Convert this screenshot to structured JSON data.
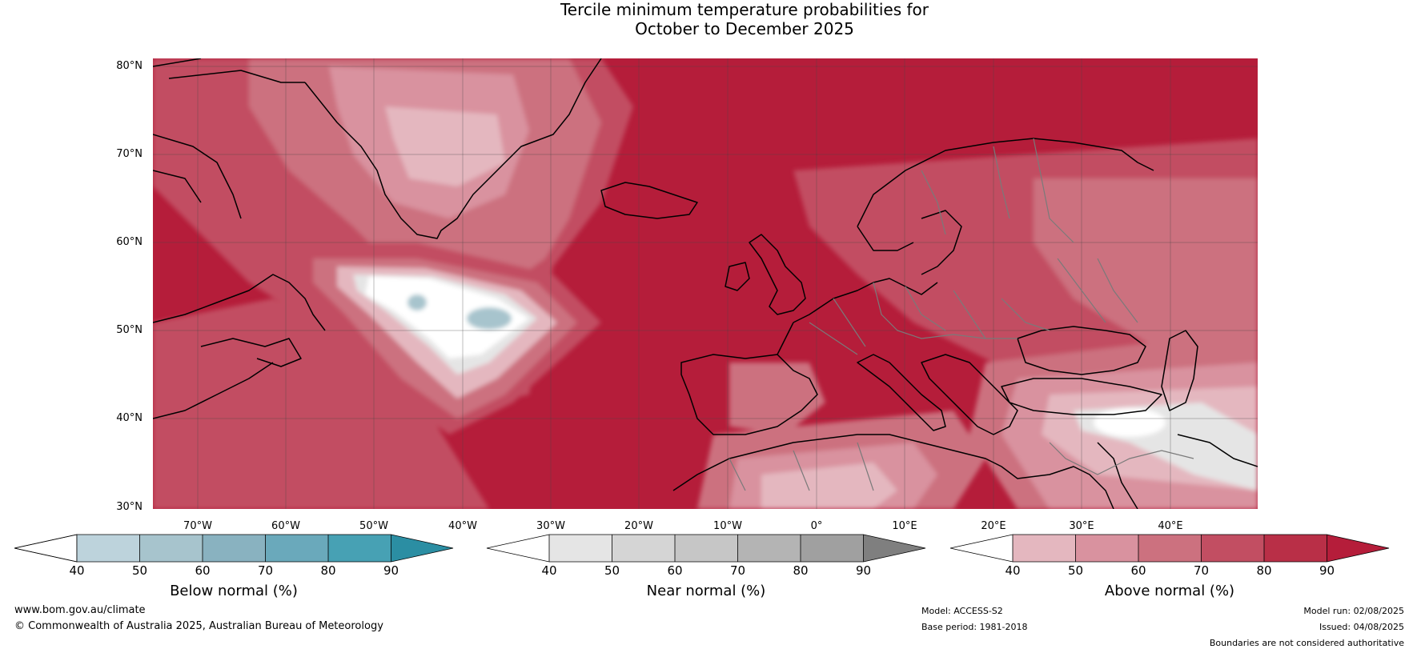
{
  "title": {
    "line1": "Tercile minimum temperature probabilities for",
    "line2": "October to December 2025"
  },
  "map": {
    "ocean_color": "#b51d3a",
    "lat_labels": [
      "80°N",
      "70°N",
      "60°N",
      "50°N",
      "40°N",
      "30°N"
    ],
    "lon_labels": [
      "70°W",
      "60°W",
      "50°W",
      "40°W",
      "30°W",
      "20°W",
      "10°W",
      "0°",
      "10°E",
      "20°E",
      "30°E",
      "40°E"
    ]
  },
  "legends": [
    {
      "title": "Below normal (%)",
      "ticks": [
        "40",
        "50",
        "60",
        "70",
        "80",
        "90"
      ],
      "colors": [
        "#ffffff",
        "#bdd3dc",
        "#a7c4cd",
        "#89b2c0",
        "#6aa9bb",
        "#47a1b4",
        "#2b8ea3"
      ]
    },
    {
      "title": "Near normal (%)",
      "ticks": [
        "40",
        "50",
        "60",
        "70",
        "80",
        "90"
      ],
      "colors": [
        "#ffffff",
        "#e5e5e5",
        "#d5d5d5",
        "#c6c6c6",
        "#b4b4b4",
        "#a0a0a0",
        "#7f7f7f"
      ]
    },
    {
      "title": "Above normal (%)",
      "ticks": [
        "40",
        "50",
        "60",
        "70",
        "80",
        "90"
      ],
      "colors": [
        "#ffffff",
        "#e4b7bf",
        "#d9929f",
        "#cc717f",
        "#c24e62",
        "#b92f47",
        "#b51d3a"
      ]
    }
  ],
  "footer": {
    "website": "www.bom.gov.au/climate",
    "copyright": "© Commonwealth of Australia 2025, Australian Bureau of Meteorology",
    "model": "Model: ACCESS-S2",
    "base_period": "Base period: 1981-2018",
    "model_run": "Model run: 02/08/2025",
    "issued": "Issued: 04/08/2025",
    "disclaimer": "Boundaries are not considered authoritative"
  }
}
